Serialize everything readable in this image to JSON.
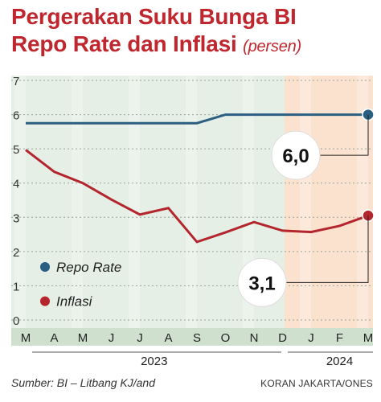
{
  "header": {
    "title_line1": "Pergerakan Suku Bunga BI",
    "title_line2": "Repo Rate dan Inflasi",
    "unit": "(persen)"
  },
  "chart_data": {
    "type": "line",
    "title": "Pergerakan Suku Bunga BI Repo Rate dan Inflasi",
    "unit": "(persen)",
    "categories": [
      "M",
      "A",
      "M",
      "J",
      "J",
      "A",
      "S",
      "O",
      "N",
      "D",
      "J",
      "F",
      "M"
    ],
    "year_labels": [
      {
        "label": "2023",
        "category_index": 4.5
      },
      {
        "label": "2024",
        "category_index": 11
      }
    ],
    "ylim": [
      0,
      7
    ],
    "yticks": [
      0,
      1,
      2,
      3,
      4,
      5,
      6,
      7
    ],
    "series": [
      {
        "name": "Repo Rate",
        "color": "#2a5f82",
        "values": [
          5.75,
          5.75,
          5.75,
          5.75,
          5.75,
          5.75,
          5.75,
          6.0,
          6.0,
          6.0,
          6.0,
          6.0,
          6.0
        ],
        "callout": "6,0"
      },
      {
        "name": "Inflasi",
        "color": "#b3262d",
        "values": [
          4.97,
          4.33,
          4.0,
          3.52,
          3.08,
          3.27,
          2.28,
          2.56,
          2.86,
          2.61,
          2.57,
          2.75,
          3.05
        ],
        "callout": "3,1"
      }
    ],
    "legend_position": "bottom-left",
    "grid": true
  },
  "footer": {
    "source": "Sumber: BI – Litbang KJ/and",
    "credit": "KORAN JAKARTA/ONES"
  }
}
